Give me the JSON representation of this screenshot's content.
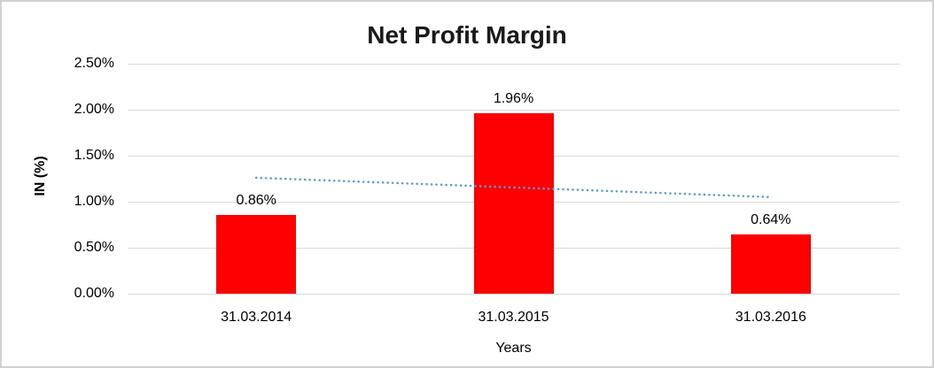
{
  "chart_data": {
    "type": "bar",
    "title": "Net Profit Margin",
    "xlabel": "Years",
    "ylabel": "IN (%)",
    "categories": [
      "31.03.2014",
      "31.03.2015",
      "31.03.2016"
    ],
    "values": [
      0.86,
      1.96,
      0.64
    ],
    "value_labels": [
      "0.86%",
      "1.96%",
      "0.64%"
    ],
    "ylim": [
      0,
      2.5
    ],
    "yticks": [
      0,
      0.5,
      1.0,
      1.5,
      2.0,
      2.5
    ],
    "ytick_labels": [
      "0.00%",
      "0.50%",
      "1.00%",
      "1.50%",
      "2.00%",
      "2.50%"
    ],
    "grid": true,
    "legend": "none",
    "bar_color": "#FF0000",
    "gridline_color": "#d9d9d9",
    "trendline": {
      "type": "linear",
      "style": "dotted",
      "color": "#5B9BD5",
      "start_value": 1.26,
      "end_value": 1.05
    }
  }
}
